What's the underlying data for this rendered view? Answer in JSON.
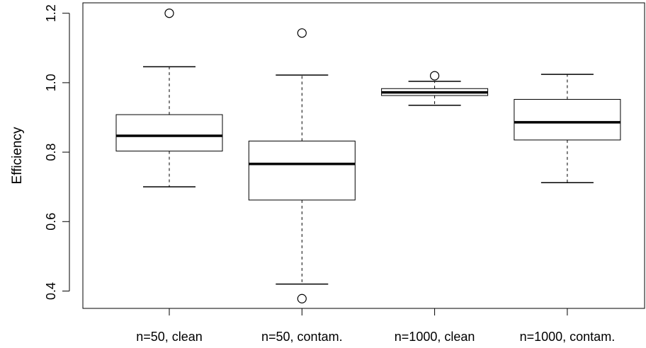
{
  "chart_data": {
    "type": "boxplot",
    "title": "",
    "xlabel": "",
    "ylabel": "Efficiency",
    "ylim": [
      0.35,
      1.23
    ],
    "yticks": [
      0.4,
      0.6,
      0.8,
      1.0,
      1.2
    ],
    "ytick_labels": [
      "0.4",
      "0.6",
      "0.8",
      "1.0",
      "1.2"
    ],
    "categories": [
      "n=50, clean",
      "n=50, contam.",
      "n=1000, clean",
      "n=1000, contam."
    ],
    "boxes": [
      {
        "whisker_low": 0.7,
        "q1": 0.803,
        "median": 0.847,
        "q3": 0.908,
        "whisker_high": 1.046,
        "outliers": [
          1.2
        ]
      },
      {
        "whisker_low": 0.42,
        "q1": 0.662,
        "median": 0.766,
        "q3": 0.832,
        "whisker_high": 1.022,
        "outliers": [
          1.143,
          0.378
        ]
      },
      {
        "whisker_low": 0.935,
        "q1": 0.963,
        "median": 0.972,
        "q3": 0.983,
        "whisker_high": 1.004,
        "outliers": [
          1.02
        ]
      },
      {
        "whisker_low": 0.712,
        "q1": 0.835,
        "median": 0.886,
        "q3": 0.952,
        "whisker_high": 1.024,
        "outliers": []
      }
    ],
    "grid": false,
    "legend": "none"
  }
}
